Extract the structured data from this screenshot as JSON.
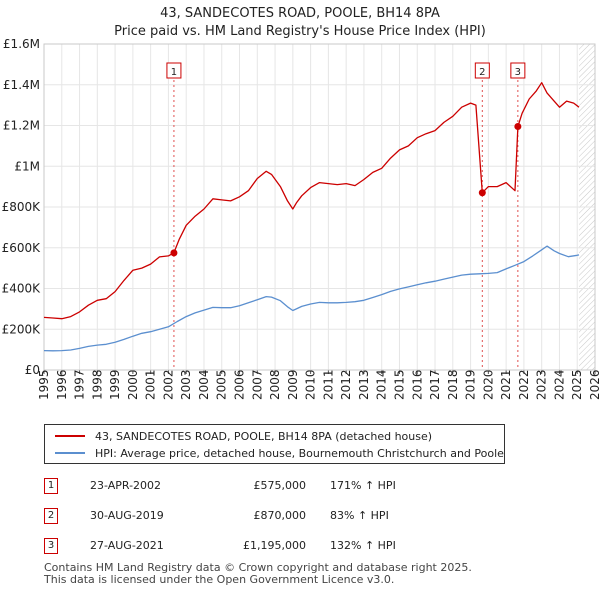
{
  "header": {
    "title": "43, SANDECOTES ROAD, POOLE, BH14 8PA",
    "subtitle": "Price paid vs. HM Land Registry's House Price Index (HPI)"
  },
  "chart_data": {
    "type": "line",
    "title": "Price paid vs. HM Land Registry's House Price Index (HPI)",
    "xlabel": "",
    "ylabel": "",
    "xlim": [
      1995,
      2026
    ],
    "ylim": [
      0,
      1600000
    ],
    "y_ticks": [
      {
        "value": 0,
        "label": "£0"
      },
      {
        "value": 200000,
        "label": "£200K"
      },
      {
        "value": 400000,
        "label": "£400K"
      },
      {
        "value": 600000,
        "label": "£600K"
      },
      {
        "value": 800000,
        "label": "£800K"
      },
      {
        "value": 1000000,
        "label": "£1M"
      },
      {
        "value": 1200000,
        "label": "£1.2M"
      },
      {
        "value": 1400000,
        "label": "£1.4M"
      },
      {
        "value": 1600000,
        "label": "£1.6M"
      }
    ],
    "x_ticks": [
      "1995",
      "1996",
      "1997",
      "1998",
      "1999",
      "2000",
      "2001",
      "2002",
      "2003",
      "2004",
      "2005",
      "2006",
      "2007",
      "2008",
      "2009",
      "2010",
      "2011",
      "2012",
      "2013",
      "2014",
      "2015",
      "2016",
      "2017",
      "2018",
      "2019",
      "2020",
      "2021",
      "2022",
      "2023",
      "2024",
      "2025",
      "2026"
    ],
    "forecast_start": 2025.1,
    "series": [
      {
        "name": "43, SANDECOTES ROAD, POOLE, BH14 8PA (detached house)",
        "color": "#cc0000",
        "x": [
          1995.0,
          1995.5,
          1996.0,
          1996.5,
          1997.0,
          1997.5,
          1998.0,
          1998.5,
          1999.0,
          1999.5,
          2000.0,
          2000.5,
          2001.0,
          2001.5,
          2002.0,
          2002.31,
          2002.6,
          2003.0,
          2003.5,
          2004.0,
          2004.5,
          2005.0,
          2005.5,
          2006.0,
          2006.5,
          2007.0,
          2007.5,
          2007.8,
          2008.3,
          2008.7,
          2009.0,
          2009.2,
          2009.5,
          2010.0,
          2010.5,
          2011.0,
          2011.5,
          2012.0,
          2012.5,
          2013.0,
          2013.5,
          2014.0,
          2014.5,
          2015.0,
          2015.5,
          2016.0,
          2016.5,
          2017.0,
          2017.5,
          2018.0,
          2018.5,
          2019.0,
          2019.3,
          2019.66,
          2020.0,
          2020.5,
          2021.0,
          2021.5,
          2021.66,
          2021.9,
          2022.3,
          2022.7,
          2023.0,
          2023.3,
          2023.7,
          2024.0,
          2024.4,
          2024.8,
          2025.1
        ],
        "values": [
          258000,
          255000,
          252000,
          262000,
          285000,
          318000,
          342000,
          350000,
          385000,
          440000,
          490000,
          500000,
          520000,
          555000,
          560000,
          575000,
          640000,
          710000,
          755000,
          790000,
          840000,
          835000,
          830000,
          850000,
          880000,
          940000,
          975000,
          960000,
          900000,
          830000,
          790000,
          820000,
          855000,
          895000,
          920000,
          915000,
          910000,
          915000,
          905000,
          935000,
          970000,
          990000,
          1040000,
          1080000,
          1100000,
          1140000,
          1160000,
          1175000,
          1215000,
          1245000,
          1290000,
          1310000,
          1300000,
          870000,
          900000,
          900000,
          920000,
          880000,
          1195000,
          1260000,
          1330000,
          1370000,
          1410000,
          1360000,
          1320000,
          1290000,
          1320000,
          1310000,
          1290000
        ]
      },
      {
        "name": "HPI: Average price, detached house, Bournemouth Christchurch and Poole",
        "color": "#5b8fcf",
        "x": [
          1995.0,
          1995.5,
          1996.0,
          1996.5,
          1997.0,
          1997.5,
          1998.0,
          1998.5,
          1999.0,
          1999.5,
          2000.0,
          2000.5,
          2001.0,
          2001.5,
          2002.0,
          2002.5,
          2003.0,
          2003.5,
          2004.0,
          2004.5,
          2005.0,
          2005.5,
          2006.0,
          2006.5,
          2007.0,
          2007.5,
          2007.8,
          2008.3,
          2008.7,
          2009.0,
          2009.2,
          2009.5,
          2010.0,
          2010.5,
          2011.0,
          2011.5,
          2012.0,
          2012.5,
          2013.0,
          2013.5,
          2014.0,
          2014.5,
          2015.0,
          2015.5,
          2016.0,
          2016.5,
          2017.0,
          2017.5,
          2018.0,
          2018.5,
          2019.0,
          2019.5,
          2020.0,
          2020.5,
          2021.0,
          2021.5,
          2022.0,
          2022.5,
          2023.0,
          2023.3,
          2023.7,
          2024.0,
          2024.5,
          2025.0,
          2025.1
        ],
        "values": [
          95000,
          94000,
          95000,
          98000,
          106000,
          116000,
          122000,
          126000,
          136000,
          150000,
          166000,
          180000,
          188000,
          200000,
          212000,
          238000,
          262000,
          280000,
          294000,
          307000,
          306000,
          306000,
          315000,
          330000,
          345000,
          360000,
          358000,
          340000,
          310000,
          292000,
          300000,
          312000,
          324000,
          332000,
          330000,
          330000,
          332000,
          335000,
          342000,
          356000,
          370000,
          386000,
          398000,
          408000,
          418000,
          428000,
          436000,
          446000,
          456000,
          466000,
          470000,
          472000,
          474000,
          478000,
          496000,
          514000,
          532000,
          560000,
          590000,
          608000,
          585000,
          572000,
          556000,
          563000,
          565000
        ]
      }
    ],
    "sales": [
      {
        "marker": "1",
        "x": 2002.31,
        "value": 575000
      },
      {
        "marker": "2",
        "x": 2019.66,
        "value": 870000
      },
      {
        "marker": "3",
        "x": 2021.66,
        "value": 1195000
      }
    ]
  },
  "legend": {
    "property_label": "43, SANDECOTES ROAD, POOLE, BH14 8PA (detached house)",
    "hpi_label": "HPI: Average price, detached house, Bournemouth Christchurch and Poole",
    "property_color": "#cc0000",
    "hpi_color": "#5b8fcf"
  },
  "sales_table": [
    {
      "num": "1",
      "date": "23-APR-2002",
      "price": "£575,000",
      "hpi": "171% ↑ HPI"
    },
    {
      "num": "2",
      "date": "30-AUG-2019",
      "price": "£870,000",
      "hpi": "83% ↑ HPI"
    },
    {
      "num": "3",
      "date": "27-AUG-2021",
      "price": "£1,195,000",
      "hpi": "132% ↑ HPI"
    }
  ],
  "footer": {
    "line1": "Contains HM Land Registry data © Crown copyright and database right 2025.",
    "line2": "This data is licensed under the Open Government Licence v3.0."
  }
}
